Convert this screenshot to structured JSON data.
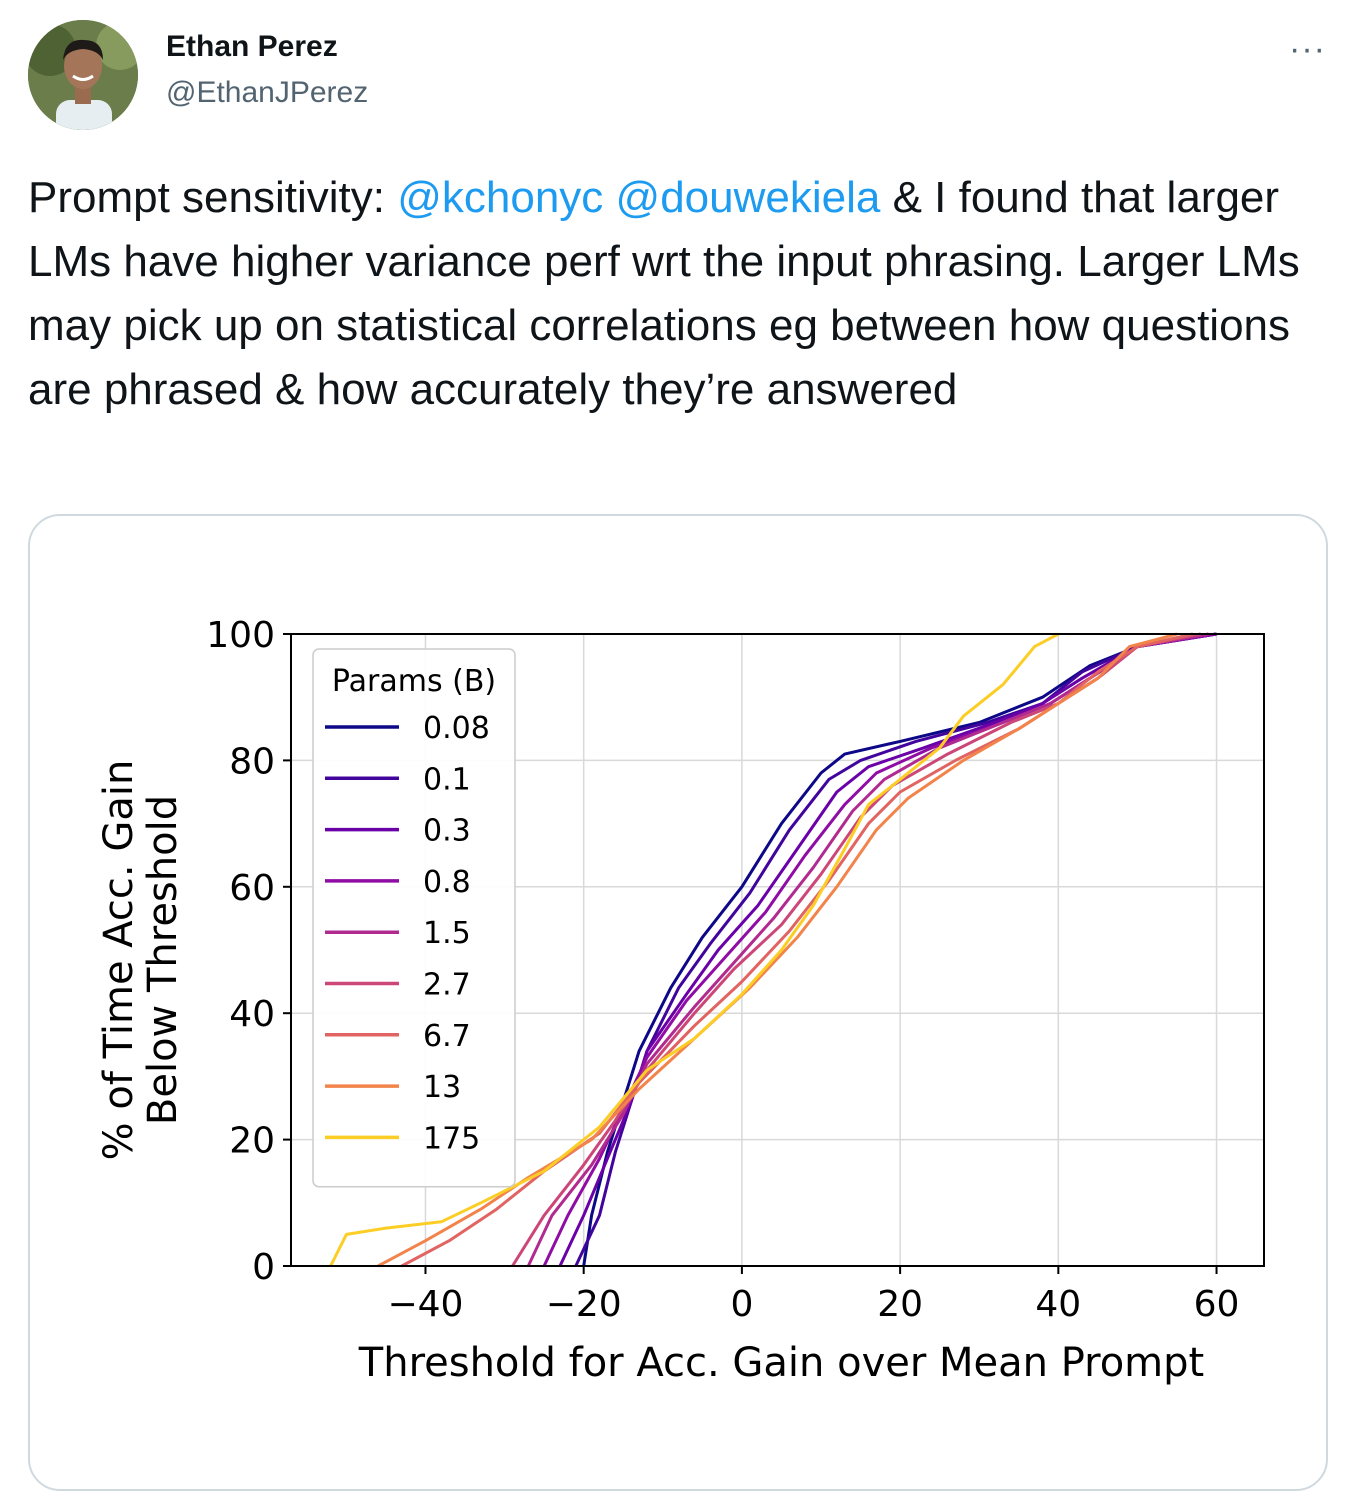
{
  "author": {
    "name": "Ethan Perez",
    "handle": "@EthanJPerez"
  },
  "more_label": "···",
  "tweet": {
    "pre": "Prompt sensitivity: ",
    "mention1": "@kchonyc",
    "space": " ",
    "mention2": "@douwekiela",
    "post": " & I found that larger LMs have higher variance perf wrt the input phrasing. Larger LMs may pick up on statistical correlations eg between how questions are phrased & how accurately they’re answered"
  },
  "chart_data": {
    "type": "line",
    "xlabel": "Threshold for Acc. Gain over Mean Prompt",
    "ylabel_line1": "% of Time Acc. Gain",
    "ylabel_line2": "Below Threshold",
    "xlim": [
      -57,
      66
    ],
    "ylim": [
      0,
      100
    ],
    "xticks": [
      -40,
      -20,
      0,
      20,
      40,
      60
    ],
    "xtick_labels": [
      "−40",
      "−20",
      "0",
      "20",
      "40",
      "60"
    ],
    "yticks": [
      0,
      20,
      40,
      60,
      80,
      100
    ],
    "ytick_labels": [
      "0",
      "20",
      "40",
      "60",
      "80",
      "100"
    ],
    "grid": true,
    "legend": {
      "title": "Params (B)",
      "location": "upper-left"
    },
    "series": [
      {
        "name": "0.08",
        "color": "#0d0887",
        "points": [
          [
            -20,
            0
          ],
          [
            -19,
            8
          ],
          [
            -17,
            18
          ],
          [
            -15,
            26
          ],
          [
            -13,
            34
          ],
          [
            -9,
            44
          ],
          [
            -5,
            52
          ],
          [
            0,
            60
          ],
          [
            5,
            70
          ],
          [
            10,
            78
          ],
          [
            13,
            81
          ],
          [
            20,
            83
          ],
          [
            30,
            86
          ],
          [
            38,
            90
          ],
          [
            44,
            95
          ],
          [
            50,
            98
          ],
          [
            60,
            100
          ]
        ]
      },
      {
        "name": "0.1",
        "color": "#41049d",
        "points": [
          [
            -21,
            0
          ],
          [
            -18,
            8
          ],
          [
            -16,
            18
          ],
          [
            -14,
            26
          ],
          [
            -12,
            34
          ],
          [
            -8,
            44
          ],
          [
            -4,
            51
          ],
          [
            1,
            59
          ],
          [
            6,
            69
          ],
          [
            11,
            77
          ],
          [
            15,
            80
          ],
          [
            22,
            83
          ],
          [
            31,
            86
          ],
          [
            38,
            89
          ],
          [
            43,
            94
          ],
          [
            50,
            98
          ],
          [
            60,
            100
          ]
        ]
      },
      {
        "name": "0.3",
        "color": "#6a00a8",
        "points": [
          [
            -23,
            0
          ],
          [
            -20,
            8
          ],
          [
            -17,
            17
          ],
          [
            -14,
            26
          ],
          [
            -12,
            34
          ],
          [
            -7,
            43
          ],
          [
            -3,
            50
          ],
          [
            2,
            57
          ],
          [
            7,
            66
          ],
          [
            12,
            75
          ],
          [
            16,
            79
          ],
          [
            23,
            82
          ],
          [
            32,
            86
          ],
          [
            38,
            89
          ],
          [
            43,
            93
          ],
          [
            50,
            98
          ],
          [
            60,
            100
          ]
        ]
      },
      {
        "name": "0.8",
        "color": "#8f0da4",
        "points": [
          [
            -25,
            0
          ],
          [
            -22,
            8
          ],
          [
            -18,
            17
          ],
          [
            -15,
            25
          ],
          [
            -12,
            33
          ],
          [
            -7,
            42
          ],
          [
            -2,
            49
          ],
          [
            3,
            56
          ],
          [
            8,
            65
          ],
          [
            13,
            73
          ],
          [
            17,
            78
          ],
          [
            24,
            82
          ],
          [
            33,
            86
          ],
          [
            39,
            89
          ],
          [
            44,
            93
          ],
          [
            50,
            98
          ],
          [
            60,
            100
          ]
        ]
      },
      {
        "name": "1.5",
        "color": "#b12a90",
        "points": [
          [
            -27,
            0
          ],
          [
            -24,
            8
          ],
          [
            -19,
            16
          ],
          [
            -15,
            24
          ],
          [
            -12,
            32
          ],
          [
            -6,
            41
          ],
          [
            -1,
            48
          ],
          [
            4,
            55
          ],
          [
            9,
            63
          ],
          [
            14,
            72
          ],
          [
            18,
            77
          ],
          [
            25,
            82
          ],
          [
            33,
            86
          ],
          [
            39,
            89
          ],
          [
            44,
            93
          ],
          [
            50,
            98
          ],
          [
            59,
            100
          ]
        ]
      },
      {
        "name": "2.7",
        "color": "#cc4778",
        "points": [
          [
            -29,
            0
          ],
          [
            -25,
            8
          ],
          [
            -20,
            16
          ],
          [
            -16,
            23
          ],
          [
            -12,
            31
          ],
          [
            -6,
            40
          ],
          [
            -1,
            47
          ],
          [
            5,
            54
          ],
          [
            10,
            62
          ],
          [
            15,
            71
          ],
          [
            19,
            76
          ],
          [
            26,
            81
          ],
          [
            34,
            86
          ],
          [
            40,
            89
          ],
          [
            45,
            93
          ],
          [
            50,
            98
          ],
          [
            58,
            100
          ]
        ]
      },
      {
        "name": "6.7",
        "color": "#e16462",
        "points": [
          [
            -43,
            0
          ],
          [
            -37,
            4
          ],
          [
            -31,
            9
          ],
          [
            -25,
            15
          ],
          [
            -18,
            21
          ],
          [
            -13,
            29
          ],
          [
            -6,
            38
          ],
          [
            0,
            45
          ],
          [
            6,
            53
          ],
          [
            11,
            61
          ],
          [
            16,
            70
          ],
          [
            20,
            75
          ],
          [
            27,
            80
          ],
          [
            35,
            85
          ],
          [
            40,
            89
          ],
          [
            45,
            94
          ],
          [
            50,
            98
          ],
          [
            57,
            100
          ]
        ]
      },
      {
        "name": "13",
        "color": "#f2844b",
        "points": [
          [
            -46,
            0
          ],
          [
            -40,
            4
          ],
          [
            -33,
            9
          ],
          [
            -27,
            14
          ],
          [
            -19,
            20
          ],
          [
            -13,
            28
          ],
          [
            -6,
            36
          ],
          [
            1,
            44
          ],
          [
            7,
            52
          ],
          [
            12,
            60
          ],
          [
            17,
            69
          ],
          [
            21,
            74
          ],
          [
            28,
            80
          ],
          [
            35,
            85
          ],
          [
            40,
            89
          ],
          [
            45,
            93
          ],
          [
            49,
            98
          ],
          [
            55,
            100
          ]
        ]
      },
      {
        "name": "175",
        "color": "#fcce25",
        "points": [
          [
            -52,
            0
          ],
          [
            -50,
            5
          ],
          [
            -45,
            6
          ],
          [
            -38,
            7
          ],
          [
            -33,
            10
          ],
          [
            -25,
            15
          ],
          [
            -18,
            22
          ],
          [
            -12,
            31
          ],
          [
            -6,
            36
          ],
          [
            0,
            43
          ],
          [
            5,
            50
          ],
          [
            9,
            57
          ],
          [
            13,
            66
          ],
          [
            16,
            73
          ],
          [
            20,
            77
          ],
          [
            25,
            82
          ],
          [
            28,
            87
          ],
          [
            33,
            92
          ],
          [
            37,
            98
          ],
          [
            40,
            100
          ]
        ]
      }
    ]
  }
}
